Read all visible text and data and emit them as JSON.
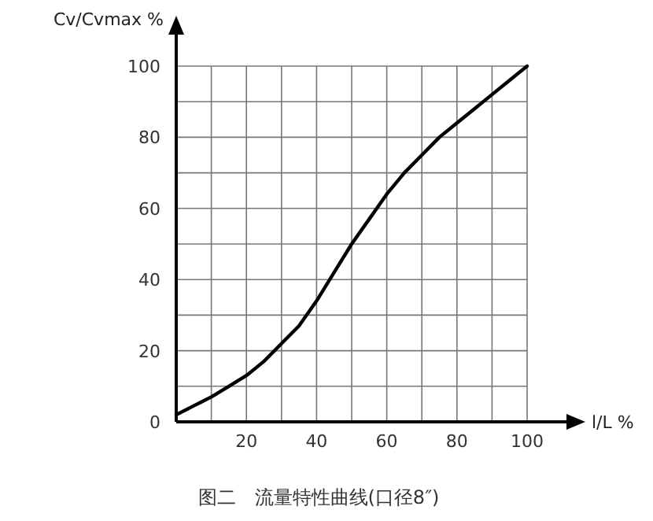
{
  "chart_data": {
    "type": "line",
    "title": "图二　流量特性曲线(口径8″)",
    "xlabel": "l/L %",
    "ylabel": "Cv/Cvmax %",
    "x": [
      0,
      5,
      10,
      15,
      20,
      25,
      30,
      35,
      40,
      45,
      50,
      55,
      60,
      65,
      70,
      75,
      80,
      85,
      90,
      95,
      100
    ],
    "series": [
      {
        "color": "#000000",
        "values": [
          2,
          4.5,
          7,
          10,
          13,
          17,
          22,
          27,
          34,
          42,
          50,
          57,
          64,
          70,
          75,
          80,
          84,
          88,
          92,
          96,
          100
        ]
      }
    ],
    "xlim": [
      0,
      100
    ],
    "ylim": [
      0,
      100
    ],
    "xticks": [
      {
        "value": 10,
        "label": null
      },
      20,
      {
        "value": 30,
        "label": null
      },
      40,
      {
        "value": 50,
        "label": null
      },
      60,
      {
        "value": 70,
        "label": null
      },
      80,
      {
        "value": 90,
        "label": null
      },
      100
    ],
    "yticks": [
      0,
      {
        "value": 10,
        "label": null
      },
      20,
      {
        "value": 30,
        "label": null
      },
      40,
      {
        "value": 50,
        "label": null
      },
      60,
      {
        "value": 70,
        "label": null
      },
      80,
      {
        "value": 90,
        "label": null
      },
      100
    ],
    "grid": true,
    "marker": "none",
    "line_style": "solid"
  }
}
